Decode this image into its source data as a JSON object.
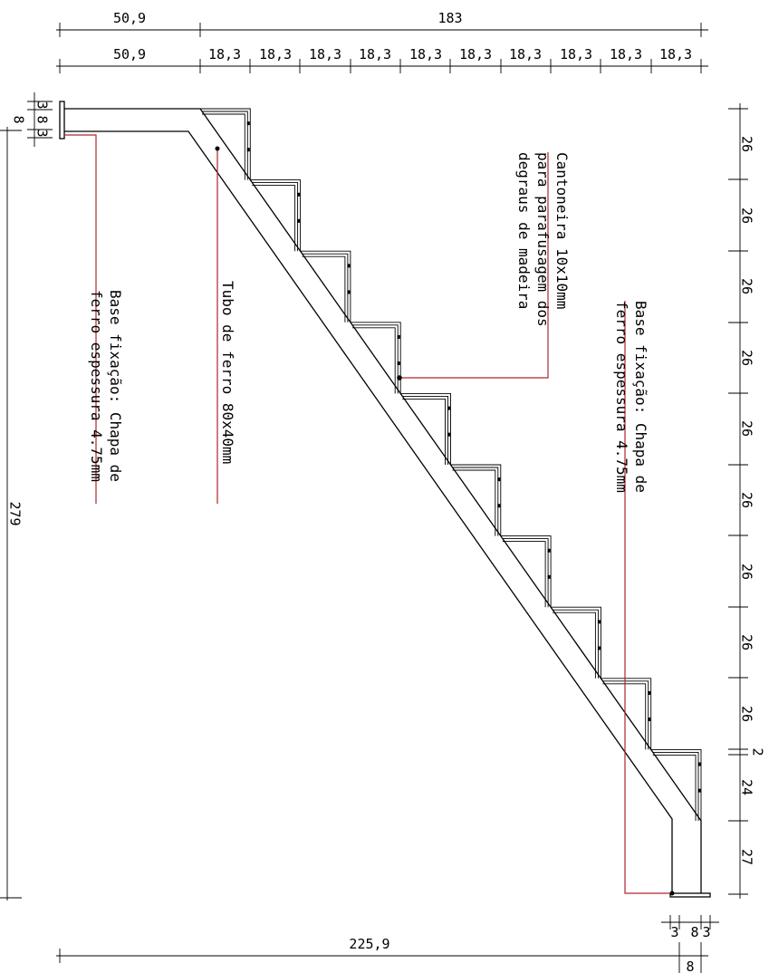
{
  "dims_top": {
    "total_row": [
      "50,9",
      "183"
    ],
    "step_row": [
      "50,9",
      "18,3",
      "18,3",
      "18,3",
      "18,3",
      "18,3",
      "18,3",
      "18,3",
      "18,3",
      "18,3",
      "18,3"
    ]
  },
  "dims_right": [
    "26",
    "26",
    "26",
    "26",
    "26",
    "26",
    "26",
    "26",
    "26",
    "2",
    "24",
    "27"
  ],
  "dims_left": {
    "height": "279",
    "plate": [
      "3",
      "8",
      "3"
    ],
    "plate_total": "8"
  },
  "dims_bottom": {
    "length": "225,9",
    "plate": [
      "3",
      "8",
      "3"
    ],
    "plate_total": "8"
  },
  "notes": {
    "base_left": [
      "Base fixação: Chapa de",
      "ferro espessura 4.75mm"
    ],
    "tube": [
      "Tubo de ferro 80x40mm"
    ],
    "angle": [
      "Cantoneira 10x10mm",
      "para parafusagem dos",
      "degraus de madeira"
    ],
    "base_right": [
      "Base fixação: Chapa de",
      "ferro espessura 4.75mm"
    ]
  },
  "colors": {
    "lines": "#000000",
    "leaders": "#b0262a"
  }
}
